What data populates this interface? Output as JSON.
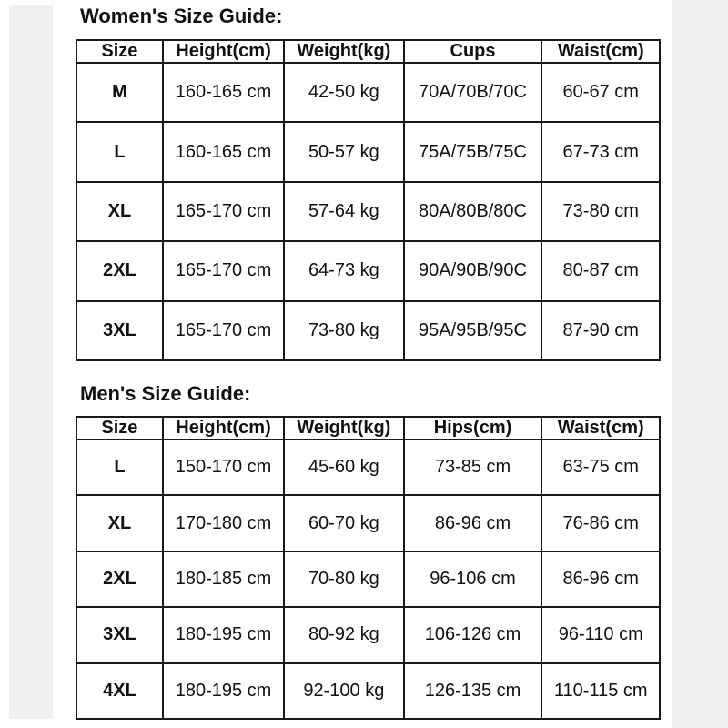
{
  "style": {
    "background_color": "#ffffff",
    "margin_stripe_color": "#f1f0ee",
    "table_border_color": "#1a1a1a",
    "text_color": "#111111"
  },
  "chart_data": [
    {
      "type": "table",
      "title": "Women's Size Guide:",
      "columns": [
        "Size",
        "Height(cm)",
        "Weight(kg)",
        "Cups",
        "Waist(cm)"
      ],
      "rows": [
        [
          "M",
          "160-165 cm",
          "42-50 kg",
          "70A/70B/70C",
          "60-67 cm"
        ],
        [
          "L",
          "160-165 cm",
          "50-57 kg",
          "75A/75B/75C",
          "67-73 cm"
        ],
        [
          "XL",
          "165-170 cm",
          "57-64 kg",
          "80A/80B/80C",
          "73-80 cm"
        ],
        [
          "2XL",
          "165-170 cm",
          "64-73 kg",
          "90A/90B/90C",
          "80-87 cm"
        ],
        [
          "3XL",
          "165-170 cm",
          "73-80 kg",
          "95A/95B/95C",
          "87-90 cm"
        ]
      ]
    },
    {
      "type": "table",
      "title": "Men's Size Guide:",
      "columns": [
        "Size",
        "Height(cm)",
        "Weight(kg)",
        "Hips(cm)",
        "Waist(cm)"
      ],
      "rows": [
        [
          "L",
          "150-170 cm",
          "45-60 kg",
          "73-85 cm",
          "63-75 cm"
        ],
        [
          "XL",
          "170-180 cm",
          "60-70 kg",
          "86-96 cm",
          "76-86 cm"
        ],
        [
          "2XL",
          "180-185 cm",
          "70-80 kg",
          "96-106 cm",
          "86-96 cm"
        ],
        [
          "3XL",
          "180-195 cm",
          "80-92 kg",
          "106-126 cm",
          "96-110 cm"
        ],
        [
          "4XL",
          "180-195 cm",
          "92-100 kg",
          "126-135 cm",
          "110-115 cm"
        ]
      ]
    }
  ]
}
